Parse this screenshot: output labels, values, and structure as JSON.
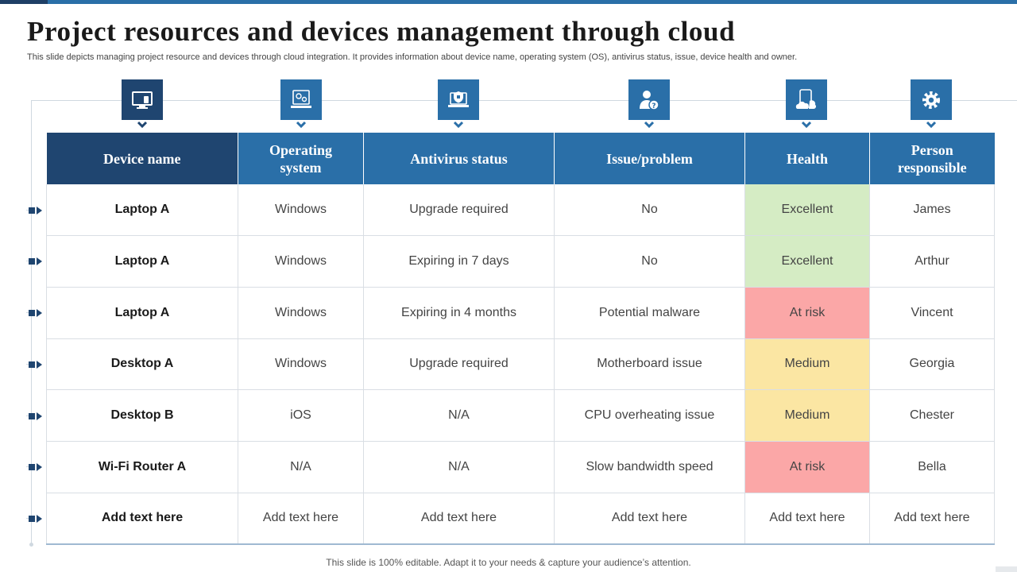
{
  "slide": {
    "title": "Project resources and devices management through cloud",
    "subtitle": "This slide depicts managing project resource and devices through cloud integration. It provides information about device name, operating system (OS), antivirus status, issue, device health and owner.",
    "footer": "This slide is 100% editable. Adapt it to your needs & capture your audience’s attention."
  },
  "icons": [
    "computer-icon",
    "gear-device-icon",
    "shield-laptop-icon",
    "user-question-icon",
    "cloud-device-icon",
    "gear-icon"
  ],
  "colors": {
    "header_dark": "#1f4570",
    "header_blue": "#2a6fa8",
    "health_excellent": "#d5ecc4",
    "health_at_risk": "#fba7a7",
    "health_medium": "#fbe6a3"
  },
  "table": {
    "headers": [
      "Device name",
      "Operating system",
      "Antivirus status",
      "Issue/problem",
      "Health",
      "Person responsible"
    ],
    "rows": [
      {
        "device": "Laptop A",
        "os": "Windows",
        "antivirus": "Upgrade required",
        "issue": "No",
        "health": "Excellent",
        "health_level": "excellent",
        "person": "James"
      },
      {
        "device": "Laptop A",
        "os": "Windows",
        "antivirus": "Expiring in 7 days",
        "issue": "No",
        "health": "Excellent",
        "health_level": "excellent",
        "person": "Arthur"
      },
      {
        "device": "Laptop A",
        "os": "Windows",
        "antivirus": "Expiring in 4 months",
        "issue": "Potential malware",
        "health": "At risk",
        "health_level": "at_risk",
        "person": "Vincent"
      },
      {
        "device": "Desktop A",
        "os": "Windows",
        "antivirus": "Upgrade required",
        "issue": "Motherboard issue",
        "health": "Medium",
        "health_level": "medium",
        "person": "Georgia"
      },
      {
        "device": "Desktop B",
        "os": "iOS",
        "antivirus": "N/A",
        "issue": "CPU overheating issue",
        "health": "Medium",
        "health_level": "medium",
        "person": "Chester"
      },
      {
        "device": "Wi-Fi Router A",
        "os": "N/A",
        "antivirus": "N/A",
        "issue": "Slow bandwidth speed",
        "health": "At risk",
        "health_level": "at_risk",
        "person": "Bella"
      },
      {
        "device": "Add text here",
        "os": "Add text here",
        "antivirus": "Add text here",
        "issue": "Add text here",
        "health": "Add text here",
        "health_level": "none",
        "person": "Add text here"
      }
    ]
  }
}
